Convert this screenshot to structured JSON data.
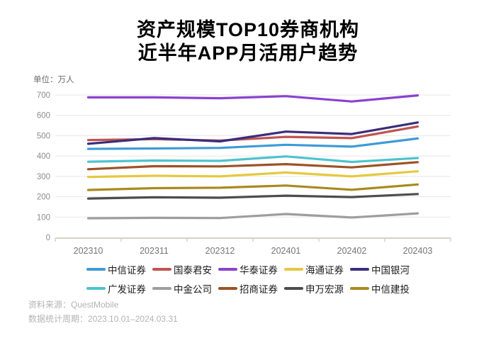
{
  "title": {
    "line1": "资产规模TOP10券商机构",
    "line2": "近半年APP月活用户趋势"
  },
  "unit_label": "单位：万人",
  "footer": {
    "source": "资料来源：QuestMobile",
    "period": "数据统计周期：2023.10.01–2024.03.31"
  },
  "chart_data": {
    "type": "line",
    "x": [
      "202310",
      "202311",
      "202312",
      "202401",
      "202402",
      "202403"
    ],
    "title": "资产规模TOP10券商机构近半年APP月活用户趋势",
    "xlabel": "",
    "ylabel": "万人",
    "ylim": [
      0,
      700
    ],
    "yticks": [
      0,
      100,
      200,
      300,
      400,
      500,
      600,
      700
    ],
    "grid": true,
    "legend_position": "bottom",
    "series": [
      {
        "name": "中信证券",
        "color": "#3E9BD5",
        "values": [
          435,
          437,
          440,
          455,
          446,
          486
        ]
      },
      {
        "name": "国泰君安",
        "color": "#BF5450",
        "values": [
          478,
          483,
          476,
          494,
          488,
          545
        ]
      },
      {
        "name": "华泰证券",
        "color": "#8A42CE",
        "values": [
          688,
          688,
          684,
          694,
          668,
          698
        ]
      },
      {
        "name": "海通证券",
        "color": "#E4C93F",
        "values": [
          297,
          303,
          300,
          319,
          300,
          325
        ]
      },
      {
        "name": "中国银河",
        "color": "#3A2D7D",
        "values": [
          460,
          488,
          472,
          520,
          508,
          565
        ]
      },
      {
        "name": "广发证券",
        "color": "#4FC3CE",
        "values": [
          372,
          378,
          376,
          398,
          371,
          390
        ]
      },
      {
        "name": "中金公司",
        "color": "#9E9E9E",
        "values": [
          94,
          96,
          95,
          115,
          98,
          118
        ]
      },
      {
        "name": "招商证券",
        "color": "#9C5226",
        "values": [
          335,
          350,
          349,
          360,
          344,
          370
        ]
      },
      {
        "name": "申万宏源",
        "color": "#4D4D4D",
        "values": [
          191,
          197,
          195,
          205,
          198,
          213
        ]
      },
      {
        "name": "中信建投",
        "color": "#A98A1F",
        "values": [
          233,
          242,
          244,
          255,
          234,
          260
        ]
      }
    ],
    "legend_rows": [
      [
        "中信证券",
        "国泰君安",
        "华泰证券",
        "海通证券",
        "中国银河"
      ],
      [
        "广发证券",
        "中金公司",
        "招商证券",
        "申万宏源",
        "中信建投"
      ]
    ],
    "colors": {
      "gridline": "#ececec",
      "axis_line": "#d9d0c5",
      "y_tick_label": "#8c8c8c",
      "x_tick_label": "#757575"
    }
  }
}
